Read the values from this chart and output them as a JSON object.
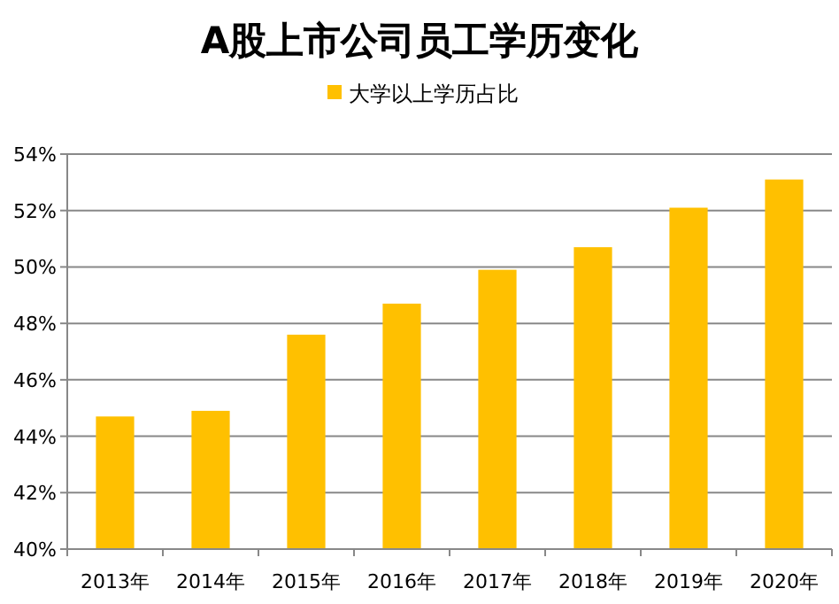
{
  "chart_data": {
    "type": "bar",
    "title": "A股上市公司员工学历变化",
    "categories": [
      "2013年",
      "2014年",
      "2015年",
      "2016年",
      "2017年",
      "2018年",
      "2019年",
      "2020年"
    ],
    "series": [
      {
        "name": "大学以上学历占比",
        "color": "#ffc000",
        "values": [
          44.7,
          44.9,
          47.6,
          48.7,
          49.9,
          50.7,
          52.1,
          53.1
        ]
      }
    ],
    "ylim": [
      40,
      54
    ],
    "yticks": [
      {
        "value": 40,
        "label": "40%"
      },
      {
        "value": 42,
        "label": "42%"
      },
      {
        "value": 44,
        "label": "44%"
      },
      {
        "value": 46,
        "label": "46%"
      },
      {
        "value": 48,
        "label": "48%"
      },
      {
        "value": 50,
        "label": "50%"
      },
      {
        "value": 52,
        "label": "52%"
      },
      {
        "value": 54,
        "label": "54%"
      }
    ],
    "grid": "y",
    "legend": "top"
  }
}
